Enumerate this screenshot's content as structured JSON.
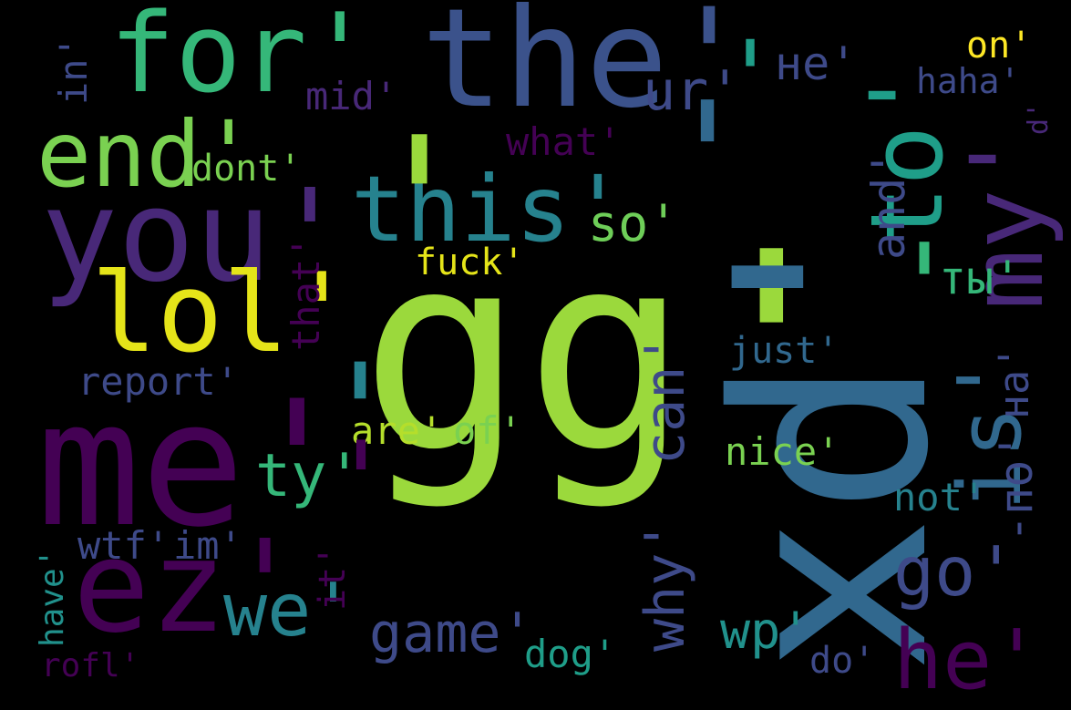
{
  "palette": {
    "background": "#000000",
    "purple_dark": "#440154",
    "purple": "#482878",
    "indigo": "#3e4a89",
    "blue": "#31688e",
    "teal_blue": "#26828e",
    "teal": "#1f9e89",
    "green": "#35b779",
    "light_green": "#6ece58",
    "lime": "#b5de2b",
    "yellow": "#fde725"
  },
  "words": [
    {
      "text": "gg'",
      "color": "#9bd93c"
    },
    {
      "text": "xd'",
      "color": "#31688e"
    },
    {
      "text": "me'",
      "color": "#440154"
    },
    {
      "text": "you'",
      "color": "#482878"
    },
    {
      "text": "ez'",
      "color": "#440154"
    },
    {
      "text": "the'",
      "color": "#3b528b"
    },
    {
      "text": "for'",
      "color": "#35b779"
    },
    {
      "text": "lol'",
      "color": "#e5e419"
    },
    {
      "text": "end'",
      "color": "#7ad151"
    },
    {
      "text": "this'",
      "color": "#26828e"
    },
    {
      "text": "to'",
      "color": "#1f9e89"
    },
    {
      "text": "my'",
      "color": "#482878"
    },
    {
      "text": "is'",
      "color": "#31688e"
    },
    {
      "text": "we'",
      "color": "#26828e"
    },
    {
      "text": "he'",
      "color": "#440154"
    },
    {
      "text": "go'",
      "color": "#3e4a89"
    },
    {
      "text": "ty'",
      "color": "#35b779"
    },
    {
      "text": "game'",
      "color": "#3e4a89"
    },
    {
      "text": "wp'",
      "color": "#21918c"
    },
    {
      "text": "ur'",
      "color": "#3e4a89"
    },
    {
      "text": "не'",
      "color": "#3e4a89"
    },
    {
      "text": "so'",
      "color": "#6ece58"
    },
    {
      "text": "and'",
      "color": "#3e4a89"
    },
    {
      "text": "ты'",
      "color": "#35b779"
    },
    {
      "text": "-по'",
      "color": "#3e4a89"
    },
    {
      "text": "на'",
      "color": "#3e4a89"
    },
    {
      "text": "why'",
      "color": "#3e4a89"
    },
    {
      "text": "can'",
      "color": "#3e4a89"
    },
    {
      "text": "report'",
      "color": "#3e4a89"
    },
    {
      "text": "mid'",
      "color": "#482878"
    },
    {
      "text": "what'",
      "color": "#440154"
    },
    {
      "text": "dont'",
      "color": "#7ad151"
    },
    {
      "text": "fuck'",
      "color": "#e5e419"
    },
    {
      "text": "that'",
      "color": "#440154"
    },
    {
      "text": "just'",
      "color": "#31688e"
    },
    {
      "text": "are'",
      "color": "#b5de2b"
    },
    {
      "text": "of'",
      "color": "#7ad151"
    },
    {
      "text": "nice'",
      "color": "#7ad151"
    },
    {
      "text": "not'",
      "color": "#26828e"
    },
    {
      "text": "wtf'",
      "color": "#3e4a89"
    },
    {
      "text": "im'",
      "color": "#3e4a89"
    },
    {
      "text": "it'",
      "color": "#440154"
    },
    {
      "text": "dog'",
      "color": "#1f9e89"
    },
    {
      "text": "do'",
      "color": "#3e4a89"
    },
    {
      "text": "have'",
      "color": "#21918c"
    },
    {
      "text": "rofl'",
      "color": "#440154"
    },
    {
      "text": "in'",
      "color": "#3e4a89"
    },
    {
      "text": "on'",
      "color": "#fde725"
    },
    {
      "text": "haha'",
      "color": "#3e4a89"
    },
    {
      "text": "d'",
      "color": "#482878"
    },
    {
      "text": "'",
      "color": "#9bd93c"
    },
    {
      "text": "'",
      "color": "#1f9e89"
    },
    {
      "text": "'",
      "color": "#31688e"
    },
    {
      "text": "'",
      "color": "#26828e"
    },
    {
      "text": "'",
      "color": "#440154"
    },
    {
      "text": "'",
      "color": "#35b779"
    }
  ]
}
